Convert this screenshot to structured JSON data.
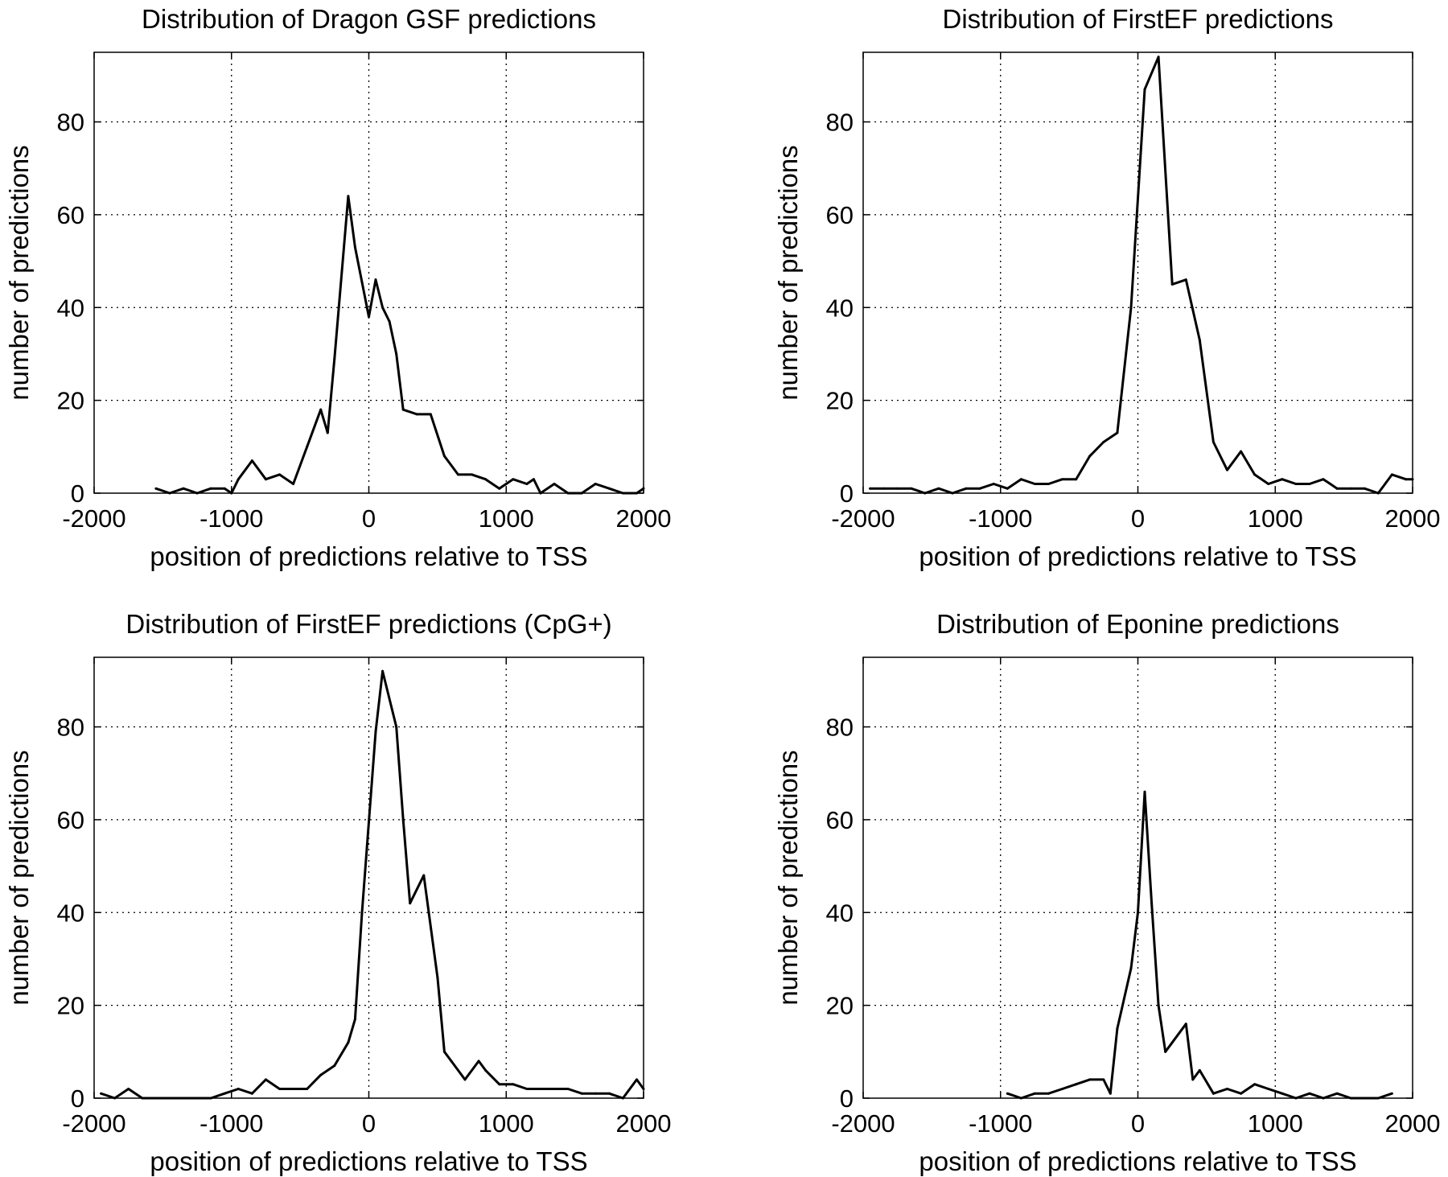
{
  "chart_data": [
    {
      "type": "line",
      "title": "Distribution of Dragon GSF predictions",
      "xlabel": "position of predictions relative to TSS",
      "ylabel": "number of predictions",
      "xlim": [
        -2000,
        2000
      ],
      "ylim": [
        0,
        95
      ],
      "xticks": [
        -2000,
        -1000,
        0,
        1000,
        2000
      ],
      "yticks": [
        0,
        20,
        40,
        60,
        80
      ],
      "grid": true,
      "x": [
        -1550,
        -1450,
        -1350,
        -1250,
        -1150,
        -1050,
        -1000,
        -950,
        -850,
        -750,
        -650,
        -550,
        -450,
        -350,
        -300,
        -250,
        -150,
        -100,
        0,
        50,
        100,
        150,
        200,
        250,
        350,
        450,
        550,
        650,
        750,
        850,
        950,
        1050,
        1150,
        1200,
        1250,
        1350,
        1450,
        1550,
        1650,
        1750,
        1850,
        1950,
        2000
      ],
      "y": [
        1,
        0,
        1,
        0,
        1,
        1,
        0,
        3,
        7,
        3,
        4,
        2,
        10,
        18,
        13,
        29,
        64,
        53,
        38,
        46,
        40,
        37,
        30,
        18,
        17,
        17,
        8,
        4,
        4,
        3,
        1,
        3,
        2,
        3,
        0,
        2,
        0,
        0,
        2,
        1,
        0,
        0,
        1
      ]
    },
    {
      "type": "line",
      "title": "Distribution of FirstEF predictions",
      "xlabel": "position of predictions relative to TSS",
      "ylabel": "number of predictions",
      "xlim": [
        -2000,
        2000
      ],
      "ylim": [
        0,
        95
      ],
      "xticks": [
        -2000,
        -1000,
        0,
        1000,
        2000
      ],
      "yticks": [
        0,
        20,
        40,
        60,
        80
      ],
      "grid": true,
      "x": [
        -1950,
        -1850,
        -1750,
        -1650,
        -1550,
        -1450,
        -1350,
        -1250,
        -1150,
        -1050,
        -950,
        -850,
        -750,
        -650,
        -550,
        -450,
        -350,
        -250,
        -150,
        -50,
        50,
        150,
        250,
        350,
        450,
        550,
        650,
        750,
        850,
        950,
        1050,
        1150,
        1250,
        1350,
        1450,
        1550,
        1650,
        1750,
        1850,
        1950,
        2000
      ],
      "y": [
        1,
        1,
        1,
        1,
        0,
        1,
        0,
        1,
        1,
        2,
        1,
        3,
        2,
        2,
        3,
        3,
        8,
        11,
        13,
        40,
        87,
        94,
        45,
        46,
        33,
        11,
        5,
        9,
        4,
        2,
        3,
        2,
        2,
        3,
        1,
        1,
        1,
        0,
        4,
        3,
        3
      ]
    },
    {
      "type": "line",
      "title": "Distribution of FirstEF predictions (CpG+)",
      "xlabel": "position of predictions relative to TSS",
      "ylabel": "number of predictions",
      "xlim": [
        -2000,
        2000
      ],
      "ylim": [
        0,
        95
      ],
      "xticks": [
        -2000,
        -1000,
        0,
        1000,
        2000
      ],
      "yticks": [
        0,
        20,
        40,
        60,
        80
      ],
      "grid": true,
      "x": [
        -1950,
        -1850,
        -1750,
        -1650,
        -1550,
        -1450,
        -1350,
        -1250,
        -1150,
        -1050,
        -950,
        -850,
        -750,
        -650,
        -550,
        -450,
        -350,
        -250,
        -150,
        -100,
        -50,
        50,
        100,
        200,
        250,
        300,
        400,
        500,
        550,
        600,
        700,
        800,
        850,
        950,
        1050,
        1150,
        1250,
        1350,
        1450,
        1550,
        1650,
        1750,
        1850,
        1950,
        2000
      ],
      "y": [
        1,
        0,
        2,
        0,
        0,
        0,
        0,
        0,
        0,
        1,
        2,
        1,
        4,
        2,
        2,
        2,
        5,
        7,
        12,
        17,
        40,
        79,
        92,
        80,
        60,
        42,
        48,
        26,
        10,
        8,
        4,
        8,
        6,
        3,
        3,
        2,
        2,
        2,
        2,
        1,
        1,
        1,
        0,
        4,
        2
      ]
    },
    {
      "type": "line",
      "title": "Distribution of Eponine predictions",
      "xlabel": "position of predictions relative to TSS",
      "ylabel": "number of predictions",
      "xlim": [
        -2000,
        2000
      ],
      "ylim": [
        0,
        95
      ],
      "xticks": [
        -2000,
        -1000,
        0,
        1000,
        2000
      ],
      "yticks": [
        0,
        20,
        40,
        60,
        80
      ],
      "grid": true,
      "x": [
        -950,
        -850,
        -750,
        -650,
        -550,
        -450,
        -350,
        -250,
        -200,
        -150,
        -50,
        0,
        50,
        100,
        150,
        200,
        250,
        350,
        400,
        450,
        550,
        650,
        750,
        850,
        950,
        1050,
        1150,
        1250,
        1350,
        1450,
        1550,
        1650,
        1750,
        1850
      ],
      "y": [
        1,
        0,
        1,
        1,
        2,
        3,
        4,
        4,
        1,
        15,
        28,
        40,
        66,
        42,
        20,
        10,
        12,
        16,
        4,
        6,
        1,
        2,
        1,
        3,
        2,
        1,
        0,
        1,
        0,
        1,
        0,
        0,
        0,
        1
      ]
    }
  ]
}
